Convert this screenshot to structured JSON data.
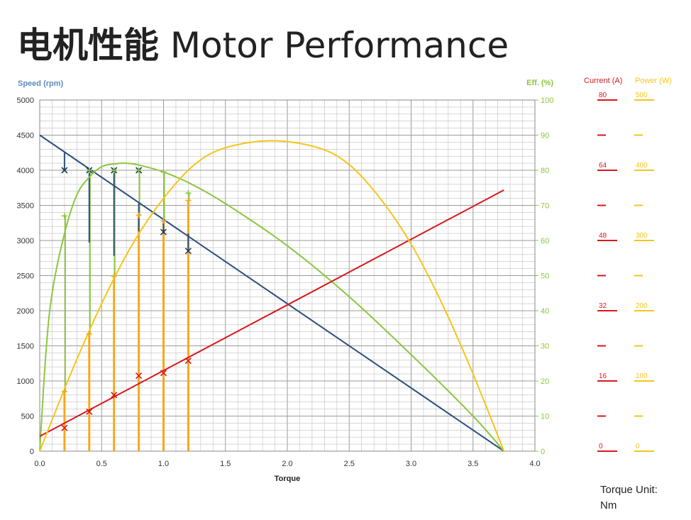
{
  "title": {
    "zh": "电机性能",
    "en": "Motor Performance"
  },
  "note": {
    "line1": "Torque Unit:",
    "line2": "Nm"
  },
  "colors": {
    "speed": "#2d4f7c",
    "efficiency": "#8cc63f",
    "current": "#d7191c",
    "power": "#f5c518",
    "grid": "#bfbfbf"
  },
  "chart_data": {
    "type": "line",
    "xlabel": "Torque",
    "xlim": [
      0,
      4.0
    ],
    "x_ticks": [
      "0.0",
      "0.5",
      "1.0",
      "1.5",
      "2.0",
      "2.5",
      "3.0",
      "3.5",
      "4.0"
    ],
    "grid": true,
    "left_axis": {
      "label": "Speed (rpm)",
      "range": [
        0,
        5000
      ],
      "ticks": [
        "0",
        "500",
        "1000",
        "1500",
        "2000",
        "2500",
        "3000",
        "3500",
        "4000",
        "4500",
        "5000"
      ]
    },
    "right_axis": {
      "label": "Eff. (%)",
      "range": [
        0,
        100
      ],
      "ticks": [
        "0",
        "10",
        "20",
        "30",
        "40",
        "50",
        "60",
        "70",
        "80",
        "90",
        "100"
      ]
    },
    "current_axis": {
      "label": "Current (A)",
      "range": [
        0,
        80
      ],
      "ticks": [
        "0",
        "16",
        "32",
        "48",
        "64",
        "80"
      ]
    },
    "power_axis": {
      "label": "Power (W)",
      "range": [
        0,
        500
      ],
      "ticks": [
        "0",
        "100",
        "200",
        "300",
        "400",
        "500"
      ]
    },
    "series": [
      {
        "name": "Speed (rpm)",
        "axis": "left",
        "points": [
          [
            0,
            4500
          ],
          [
            3.75,
            0
          ]
        ]
      },
      {
        "name": "Eff. (%)",
        "axis": "right",
        "points": [
          [
            0,
            0
          ],
          [
            0.05,
            28
          ],
          [
            0.1,
            45
          ],
          [
            0.2,
            62
          ],
          [
            0.3,
            73
          ],
          [
            0.4,
            78
          ],
          [
            0.5,
            81
          ],
          [
            0.6,
            81.8
          ],
          [
            0.7,
            82
          ],
          [
            0.8,
            81.5
          ],
          [
            1.0,
            79.5
          ],
          [
            1.2,
            76.5
          ],
          [
            1.5,
            70.5
          ],
          [
            2.0,
            58.5
          ],
          [
            2.5,
            44
          ],
          [
            3.0,
            27.5
          ],
          [
            3.5,
            10
          ],
          [
            3.75,
            0
          ]
        ]
      },
      {
        "name": "Current (A)",
        "axis": "current",
        "points": [
          [
            0,
            3.4
          ],
          [
            3.75,
            59.5
          ]
        ]
      },
      {
        "name": "Power (W)",
        "axis": "power",
        "points": [
          [
            0,
            0
          ],
          [
            0.25,
            110
          ],
          [
            0.5,
            210
          ],
          [
            0.75,
            295
          ],
          [
            1.0,
            360
          ],
          [
            1.25,
            408
          ],
          [
            1.5,
            432
          ],
          [
            1.875,
            442
          ],
          [
            2.25,
            432
          ],
          [
            2.5,
            408
          ],
          [
            2.75,
            360
          ],
          [
            3.0,
            295
          ],
          [
            3.25,
            210
          ],
          [
            3.5,
            110
          ],
          [
            3.75,
            0
          ]
        ]
      }
    ],
    "measured": {
      "torque": [
        0.2,
        0.4,
        0.6,
        0.8,
        1.0,
        1.2
      ],
      "speed": [
        4000,
        4000,
        4000,
        4000,
        3120,
        2850
      ],
      "speed_bar_top": [
        4250,
        4000,
        4000,
        3530,
        3300,
        3100
      ],
      "speed_bar_bottom": [
        4000,
        2970,
        2780,
        3130,
        3100,
        2850
      ],
      "efficiency": [
        67,
        80,
        80,
        80,
        79.5,
        73.5
      ],
      "current": [
        5.3,
        9,
        12.8,
        17.2,
        17.8,
        20.6
      ],
      "power": [
        85,
        167,
        249,
        336,
        328,
        357
      ]
    }
  }
}
